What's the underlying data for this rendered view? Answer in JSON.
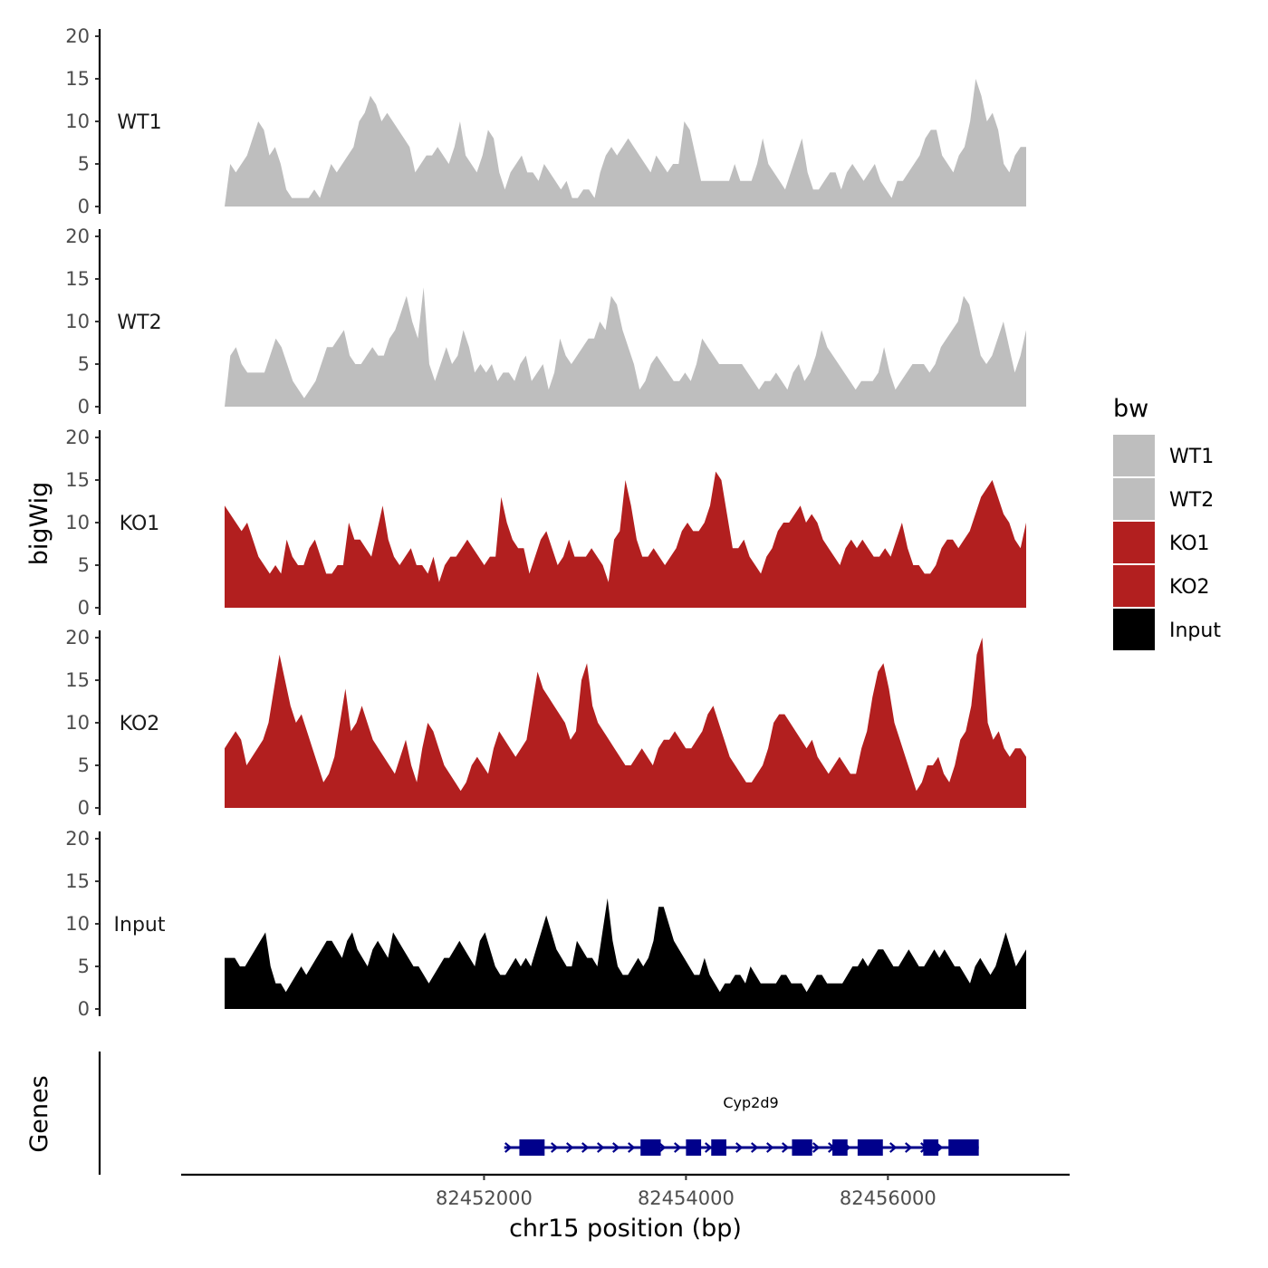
{
  "chart_data": {
    "type": "area",
    "title": "",
    "xlabel": "chr15 position (bp)",
    "ylabel": "bigWig",
    "genes_label": "Genes",
    "xlim": [
      82449000,
      82457800
    ],
    "x_ticks": [
      82452000,
      82454000,
      82456000
    ],
    "x_tick_labels": [
      "82452000",
      "82454000",
      "82456000"
    ],
    "ylim": [
      0,
      20
    ],
    "y_ticks": [
      0,
      5,
      10,
      15,
      20
    ],
    "y_tick_labels": [
      "0",
      "5",
      "10",
      "15",
      "20"
    ],
    "legend_title": "bw",
    "legend_position": "right",
    "region": [
      82450000,
      82456800
    ],
    "series": [
      {
        "name": "WT1",
        "color": "#bebebe",
        "values": [
          0,
          5,
          4,
          5,
          6,
          8,
          10,
          9,
          6,
          7,
          5,
          2,
          1,
          1,
          1,
          1,
          2,
          1,
          3,
          5,
          4,
          5,
          6,
          7,
          10,
          11,
          13,
          12,
          10,
          11,
          10,
          9,
          8,
          7,
          4,
          5,
          6,
          6,
          7,
          6,
          5,
          7,
          10,
          6,
          5,
          4,
          6,
          9,
          8,
          4,
          2,
          4,
          5,
          6,
          4,
          4,
          3,
          5,
          4,
          3,
          2,
          3,
          1,
          1,
          2,
          2,
          1,
          4,
          6,
          7,
          6,
          7,
          8,
          7,
          6,
          5,
          4,
          6,
          5,
          4,
          5,
          5,
          10,
          9,
          6,
          3,
          3,
          3,
          3,
          3,
          3,
          5,
          3,
          3,
          3,
          5,
          8,
          5,
          4,
          3,
          2,
          4,
          6,
          8,
          4,
          2,
          2,
          3,
          4,
          4,
          2,
          4,
          5,
          4,
          3,
          4,
          5,
          3,
          2,
          1,
          3,
          3,
          4,
          5,
          6,
          8,
          9,
          9,
          6,
          5,
          4,
          6,
          7,
          10,
          15,
          13,
          10,
          11,
          9,
          5,
          4,
          6,
          7,
          7
        ]
      },
      {
        "name": "WT2",
        "color": "#bebebe",
        "values": [
          0,
          6,
          7,
          5,
          4,
          4,
          4,
          4,
          6,
          8,
          7,
          5,
          3,
          2,
          1,
          2,
          3,
          5,
          7,
          7,
          8,
          9,
          6,
          5,
          5,
          6,
          7,
          6,
          6,
          8,
          9,
          11,
          13,
          10,
          8,
          14,
          5,
          3,
          5,
          7,
          5,
          6,
          9,
          7,
          4,
          5,
          4,
          5,
          3,
          4,
          4,
          3,
          5,
          6,
          3,
          4,
          5,
          2,
          4,
          8,
          6,
          5,
          6,
          7,
          8,
          8,
          10,
          9,
          13,
          12,
          9,
          7,
          5,
          2,
          3,
          5,
          6,
          5,
          4,
          3,
          3,
          4,
          3,
          5,
          8,
          7,
          6,
          5,
          5,
          5,
          5,
          5,
          4,
          3,
          2,
          3,
          3,
          4,
          3,
          2,
          4,
          5,
          3,
          4,
          6,
          9,
          7,
          6,
          5,
          4,
          3,
          2,
          3,
          3,
          3,
          4,
          7,
          4,
          2,
          3,
          4,
          5,
          5,
          5,
          4,
          5,
          7,
          8,
          9,
          10,
          13,
          12,
          9,
          6,
          5,
          6,
          8,
          10,
          7,
          4,
          6,
          9
        ]
      },
      {
        "name": "KO1",
        "color": "#b21f1f",
        "values": [
          12,
          11,
          10,
          9,
          10,
          8,
          6,
          5,
          4,
          5,
          4,
          8,
          6,
          5,
          5,
          7,
          8,
          6,
          4,
          4,
          5,
          5,
          10,
          8,
          8,
          7,
          6,
          9,
          12,
          8,
          6,
          5,
          6,
          7,
          5,
          5,
          4,
          6,
          3,
          5,
          6,
          6,
          7,
          8,
          7,
          6,
          5,
          6,
          6,
          13,
          10,
          8,
          7,
          7,
          4,
          6,
          8,
          9,
          7,
          5,
          6,
          8,
          6,
          6,
          6,
          7,
          6,
          5,
          3,
          8,
          9,
          15,
          12,
          8,
          6,
          6,
          7,
          6,
          5,
          6,
          7,
          9,
          10,
          9,
          9,
          10,
          12,
          16,
          15,
          11,
          7,
          7,
          8,
          6,
          5,
          4,
          6,
          7,
          9,
          10,
          10,
          11,
          12,
          10,
          11,
          10,
          8,
          7,
          6,
          5,
          7,
          8,
          7,
          8,
          7,
          6,
          6,
          7,
          6,
          8,
          10,
          7,
          5,
          5,
          4,
          4,
          5,
          7,
          8,
          8,
          7,
          8,
          9,
          11,
          13,
          14,
          15,
          13,
          11,
          10,
          8,
          7,
          10
        ]
      },
      {
        "name": "KO2",
        "color": "#b21f1f",
        "values": [
          7,
          8,
          9,
          8,
          5,
          6,
          7,
          8,
          10,
          14,
          18,
          15,
          12,
          10,
          11,
          9,
          7,
          5,
          3,
          4,
          6,
          10,
          14,
          9,
          10,
          12,
          10,
          8,
          7,
          6,
          5,
          4,
          6,
          8,
          5,
          3,
          7,
          10,
          9,
          7,
          5,
          4,
          3,
          2,
          3,
          5,
          6,
          5,
          4,
          7,
          9,
          8,
          7,
          6,
          7,
          8,
          12,
          16,
          14,
          13,
          12,
          11,
          10,
          8,
          9,
          15,
          17,
          12,
          10,
          9,
          8,
          7,
          6,
          5,
          5,
          6,
          7,
          6,
          5,
          7,
          8,
          8,
          9,
          8,
          7,
          7,
          8,
          9,
          11,
          12,
          10,
          8,
          6,
          5,
          4,
          3,
          3,
          4,
          5,
          7,
          10,
          11,
          11,
          10,
          9,
          8,
          7,
          8,
          6,
          5,
          4,
          5,
          6,
          5,
          4,
          4,
          7,
          9,
          13,
          16,
          17,
          14,
          10,
          8,
          6,
          4,
          2,
          3,
          5,
          5,
          6,
          4,
          3,
          5,
          8,
          9,
          12,
          18,
          20,
          10,
          8,
          9,
          7,
          6,
          7,
          7,
          6
        ]
      },
      {
        "name": "Input",
        "color": "#000000",
        "values": [
          6,
          6,
          6,
          5,
          5,
          6,
          7,
          8,
          9,
          5,
          3,
          3,
          2,
          3,
          4,
          5,
          4,
          5,
          6,
          7,
          8,
          8,
          7,
          6,
          8,
          9,
          7,
          6,
          5,
          7,
          8,
          7,
          6,
          9,
          8,
          7,
          6,
          5,
          5,
          4,
          3,
          4,
          5,
          6,
          6,
          7,
          8,
          7,
          6,
          5,
          8,
          9,
          7,
          5,
          4,
          4,
          5,
          6,
          5,
          6,
          5,
          7,
          9,
          11,
          9,
          7,
          6,
          5,
          5,
          8,
          7,
          6,
          6,
          5,
          9,
          13,
          8,
          5,
          4,
          4,
          5,
          6,
          5,
          6,
          8,
          12,
          12,
          10,
          8,
          7,
          6,
          5,
          4,
          4,
          6,
          4,
          3,
          2,
          3,
          3,
          4,
          4,
          3,
          5,
          4,
          3,
          3,
          3,
          3,
          4,
          4,
          3,
          3,
          3,
          2,
          3,
          4,
          4,
          3,
          3,
          3,
          3,
          4,
          5,
          5,
          6,
          5,
          6,
          7,
          7,
          6,
          5,
          5,
          6,
          7,
          6,
          5,
          5,
          6,
          7,
          6,
          7,
          6,
          5,
          5,
          4,
          3,
          5,
          6,
          5,
          4,
          5,
          7,
          9,
          7,
          5,
          6,
          7
        ]
      }
    ],
    "gene": {
      "name": "Cyp2d9",
      "start": 82452200,
      "end": 82456900,
      "strand": "+",
      "exons": [
        [
          82452350,
          82452600
        ],
        [
          82453550,
          82453750
        ],
        [
          82454000,
          82454150
        ],
        [
          82454250,
          82454400
        ],
        [
          82455050,
          82455250
        ],
        [
          82455450,
          82455600
        ],
        [
          82455700,
          82455950
        ],
        [
          82456350,
          82456500
        ],
        [
          82456600,
          82456900
        ]
      ]
    }
  }
}
